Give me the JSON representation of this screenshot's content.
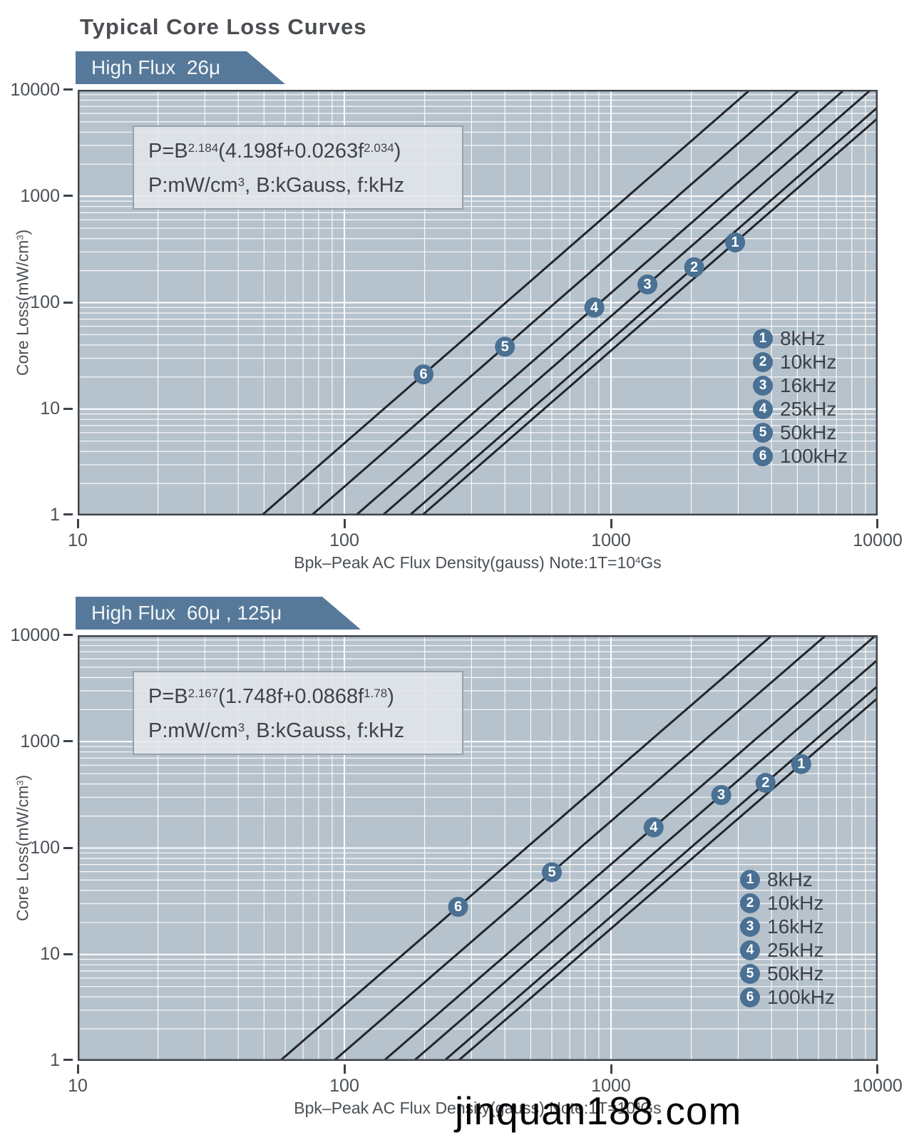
{
  "page": {
    "title": "Typical Core Loss Curves",
    "watermark": "jinquan188.com",
    "colors": {
      "plot_bg": "#b6c2cc",
      "grid": "#ffffff",
      "curve": "#22262b",
      "border": "#3d434a",
      "banner": "#56799a",
      "marker": "#4a7093",
      "text": "#4a5056"
    }
  },
  "chart_data": [
    {
      "type": "line",
      "banner": "High Flux  26μ",
      "axes_scale": "log-log",
      "grid": "on",
      "legend_position": "lower right inside plot",
      "formula_line1": [
        "P=B",
        "2.184",
        "(4.198f+0.0263f",
        "2.034",
        ")"
      ],
      "formula_line2": [
        "P:mW/cm",
        "3",
        ",  B:kGauss,  f:kHz"
      ],
      "model": {
        "B_exp": 2.184,
        "f_lin": 4.198,
        "f_coef": 0.0263,
        "f_exp": 2.034
      },
      "frequencies_kHz": [
        8,
        10,
        16,
        25,
        50,
        100
      ],
      "legend": [
        {
          "num": "1",
          "label": "8kHz"
        },
        {
          "num": "2",
          "label": "10kHz"
        },
        {
          "num": "3",
          "label": "16kHz"
        },
        {
          "num": "4",
          "label": "25kHz"
        },
        {
          "num": "5",
          "label": "50kHz"
        },
        {
          "num": "6",
          "label": "100kHz"
        }
      ],
      "marker_B_gauss": [
        2920,
        2050,
        1370,
        866,
        400,
        198
      ],
      "x_ticks": [
        "10",
        "100",
        "1000",
        "10000"
      ],
      "y_ticks": [
        "10000",
        "1000",
        "100",
        "10",
        "1"
      ],
      "xlabel_parts": [
        "Bpk–Peak AC Flux Density(gauss) Note:1T=10",
        "4",
        "Gs"
      ],
      "ylabel_parts": [
        "Core Loss(mW/cm",
        "3",
        ")"
      ],
      "xlim_gauss": [
        10,
        10000
      ],
      "ylim_mW_cm3": [
        1,
        10000
      ]
    },
    {
      "type": "line",
      "banner": "High Flux  60μ , 125μ",
      "axes_scale": "log-log",
      "grid": "on",
      "legend_position": "lower right inside plot",
      "formula_line1": [
        "P=B",
        "2.167",
        "(1.748f+0.0868f",
        "1.78",
        ")"
      ],
      "formula_line2": [
        "P:mW/cm",
        "3",
        ",  B:kGauss,  f:kHz"
      ],
      "model": {
        "B_exp": 2.167,
        "f_lin": 1.748,
        "f_coef": 0.0868,
        "f_exp": 1.78
      },
      "frequencies_kHz": [
        8,
        10,
        16,
        25,
        50,
        100
      ],
      "legend": [
        {
          "num": "1",
          "label": "8kHz"
        },
        {
          "num": "2",
          "label": "10kHz"
        },
        {
          "num": "3",
          "label": "16kHz"
        },
        {
          "num": "4",
          "label": "25kHz"
        },
        {
          "num": "5",
          "label": "50kHz"
        },
        {
          "num": "6",
          "label": "100kHz"
        }
      ],
      "marker_B_gauss": [
        5170,
        3800,
        2590,
        1445,
        600,
        267
      ],
      "x_ticks": [
        "10",
        "100",
        "1000",
        "10000"
      ],
      "y_ticks": [
        "10000",
        "1000",
        "100",
        "10",
        "1"
      ],
      "xlabel_parts": [
        "Bpk–Peak AC Flux Density(gauss) Note:1T=10",
        "4",
        "Gs"
      ],
      "ylabel_parts": [
        "Core Loss(mW/cm",
        "3",
        ")"
      ],
      "xlim_gauss": [
        10,
        10000
      ],
      "ylim_mW_cm3": [
        1,
        10000
      ]
    }
  ]
}
